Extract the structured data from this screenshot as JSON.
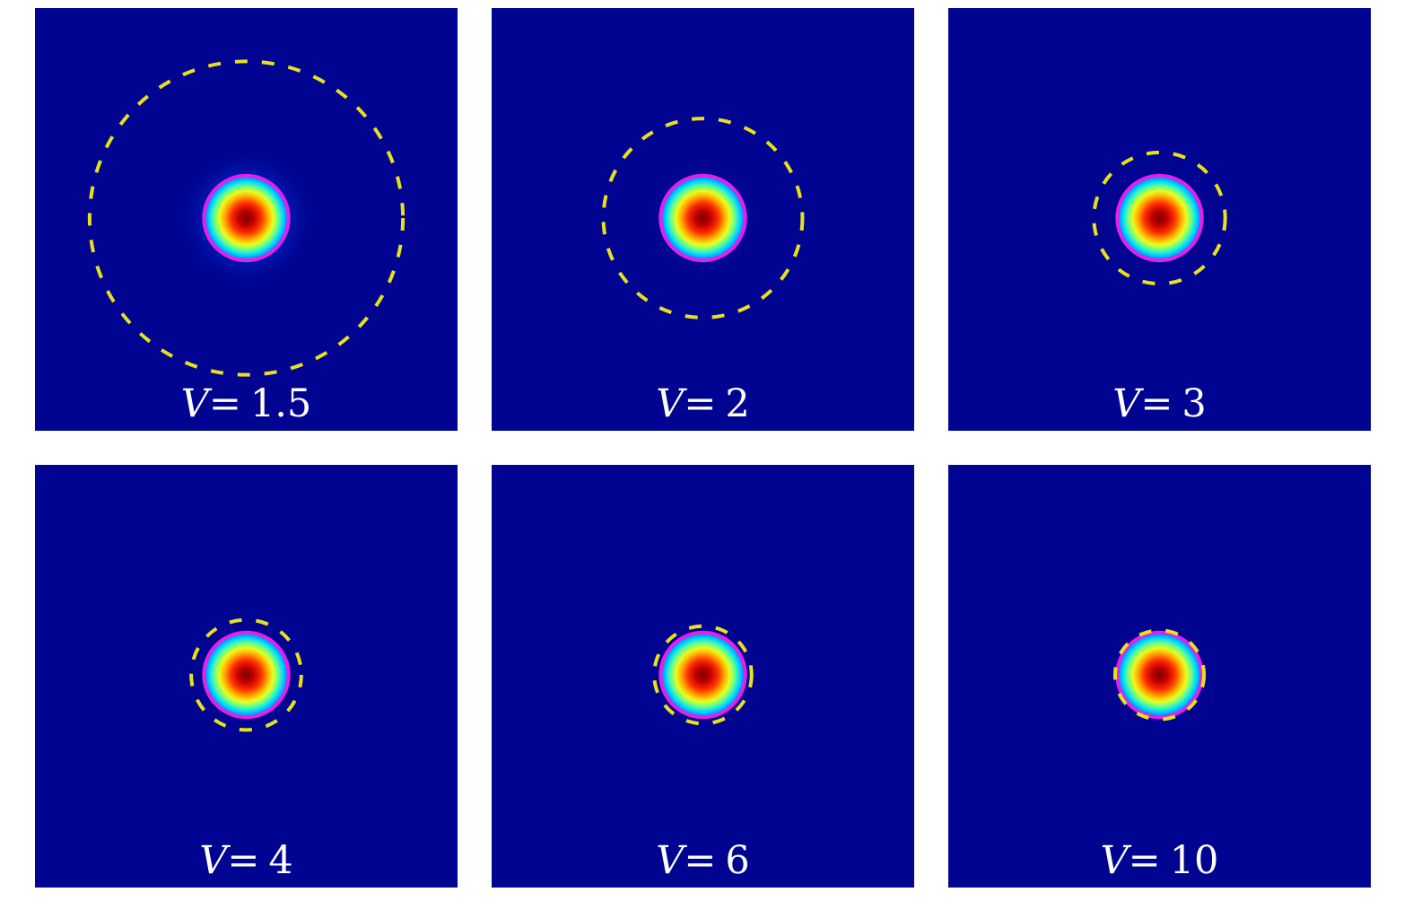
{
  "colors": {
    "background": "#000490",
    "contour_solid": "#e81ee6",
    "contour_dashed": "#e8e01e",
    "label": "#ffffff"
  },
  "panels": [
    {
      "variable": "V",
      "equals": "=",
      "value": "1.5",
      "core_radius": 0.2,
      "halo_radius": 0.33,
      "solid_radius": 0.2,
      "dashed_radius": 0.74
    },
    {
      "variable": "V",
      "equals": "=",
      "value": "2",
      "core_radius": 0.2,
      "halo_radius": 0.26,
      "solid_radius": 0.2,
      "dashed_radius": 0.47
    },
    {
      "variable": "V",
      "equals": "=",
      "value": "3",
      "core_radius": 0.2,
      "halo_radius": 0.23,
      "solid_radius": 0.2,
      "dashed_radius": 0.31
    },
    {
      "variable": "V",
      "equals": "=",
      "value": "4",
      "core_radius": 0.2,
      "halo_radius": 0.22,
      "solid_radius": 0.2,
      "dashed_radius": 0.26
    },
    {
      "variable": "V",
      "equals": "=",
      "value": "6",
      "core_radius": 0.2,
      "halo_radius": 0.21,
      "solid_radius": 0.2,
      "dashed_radius": 0.23
    },
    {
      "variable": "V",
      "equals": "=",
      "value": "10",
      "core_radius": 0.2,
      "halo_radius": 0.2,
      "solid_radius": 0.2,
      "dashed_radius": 0.21
    }
  ]
}
